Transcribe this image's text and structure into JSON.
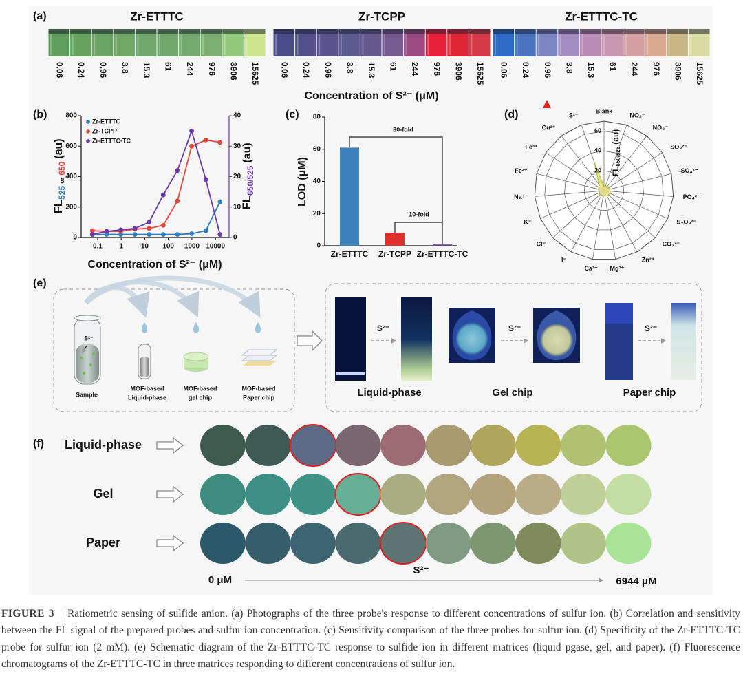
{
  "panel_a": {
    "label": "(a)",
    "x_label": "Concentration of S²⁻ (μM)",
    "groups": [
      {
        "title": "Zr-ETTTC",
        "concentrations": [
          0.06,
          0.24,
          0.96,
          3.8,
          15.3,
          61,
          244,
          976,
          3906,
          15625
        ],
        "colors": [
          "#5f9f5b",
          "#66a45e",
          "#6aa563",
          "#70a866",
          "#6fa86a",
          "#70a76b",
          "#74aa6d",
          "#7cae70",
          "#93c97b",
          "#cde58e"
        ]
      },
      {
        "title": "Zr-TCPP",
        "concentrations": [
          0.06,
          0.24,
          0.96,
          3.8,
          15.3,
          61,
          244,
          976,
          3906,
          15625
        ],
        "colors": [
          "#4a4d8a",
          "#534f8a",
          "#59548e",
          "#5d5991",
          "#655a90",
          "#775a90",
          "#9a4c82",
          "#e8203a",
          "#e02535",
          "#d63a48"
        ]
      },
      {
        "title": "Zr-ETTTC-TC",
        "concentrations": [
          0.06,
          0.24,
          0.96,
          3.8,
          15.3,
          61,
          244,
          976,
          3906,
          15625
        ],
        "colors": [
          "#2f6cc8",
          "#4a73c2",
          "#7c86c0",
          "#a18bbf",
          "#b98cb8",
          "#c996b0",
          "#d6a0a2",
          "#d8a890",
          "#c9b885",
          "#d9dca2"
        ]
      }
    ]
  },
  "panel_b": {
    "label": "(b)",
    "chart": {
      "type": "line",
      "x": [
        0.06,
        0.24,
        0.96,
        3.8,
        15.3,
        61,
        244,
        976,
        3906,
        15625
      ],
      "log_x": true,
      "xlim": [
        0.02,
        38000
      ],
      "xticks": [
        0.1,
        1,
        10,
        100,
        1000,
        10000
      ],
      "ylim": [
        0,
        800
      ],
      "yticks": [
        0,
        200,
        400,
        600,
        800
      ],
      "y2lim": [
        0,
        40
      ],
      "y2ticks": [
        0,
        10,
        20,
        30,
        40
      ],
      "x_label": "Concentration of S²⁻ (μM)",
      "y_label": {
        "main": "FL",
        "sub1": "525",
        "or": "or",
        "sub2": "650",
        "unit": "(au)"
      },
      "y2_label": {
        "main": "FL",
        "sub": "650/525",
        "unit": "(au)"
      },
      "legend": "upper left",
      "series": [
        {
          "name": "Zr-ETTTC",
          "color": "#2f7fc0",
          "values": [
            20,
            20,
            20,
            20,
            20,
            20,
            20,
            25,
            45,
            235
          ]
        },
        {
          "name": "Zr-TCPP",
          "color": "#e8453c",
          "values": [
            45,
            40,
            40,
            55,
            60,
            80,
            240,
            600,
            640,
            625
          ]
        },
        {
          "name": "Zr-ETTTC-TC",
          "color": "#6a3aa8",
          "axis": "y2",
          "values": [
            1,
            2,
            2.5,
            3,
            5,
            14,
            22,
            35,
            19,
            1
          ]
        }
      ]
    }
  },
  "panel_c": {
    "label": "(c)",
    "chart": {
      "type": "bar",
      "categories": [
        "Zr-ETTTC",
        "Zr-TCPP",
        "Zr-ETTTC-TC"
      ],
      "values": [
        61,
        8,
        0.76
      ],
      "colors": [
        "#3a80b9",
        "#e0302e",
        "#6a3aa0"
      ],
      "ylim": [
        0,
        80
      ],
      "yticks": [
        0,
        20,
        40,
        60,
        80
      ],
      "y_label": "LOD (μM)",
      "annotations": [
        "80-fold",
        "10-fold"
      ]
    }
  },
  "panel_d": {
    "label": "(d)",
    "chart": {
      "type": "radar",
      "categories": [
        "Blank",
        "NO₂⁻",
        "NO₃⁻",
        "SO₃²⁻",
        "SO₄²⁻",
        "PO₄²⁻",
        "S₂O₈²⁻",
        "CO₃²⁻",
        "Zn²⁺",
        "Mg²⁺",
        "Ca²⁺",
        "I⁻",
        "Cl⁻",
        "K⁺",
        "Na⁺",
        "Fe²⁺",
        "Fe³⁺",
        "Cu²⁺",
        "S²⁻"
      ],
      "values": [
        4,
        5,
        6,
        5,
        6,
        6,
        7,
        6,
        6,
        5,
        6,
        5,
        6,
        5,
        5,
        6,
        6,
        8,
        30
      ],
      "rlim": [
        0,
        70
      ],
      "rticks": [
        20,
        40,
        60
      ],
      "r_label": {
        "main": "FL",
        "sub": "650/525",
        "unit": "(au)"
      },
      "color": "#e6e48a",
      "edge_color": "#b7c040"
    }
  },
  "panel_e": {
    "label": "(e)",
    "sample": "Sample",
    "analyte": "S²⁻",
    "carriers": [
      [
        "MOF-based",
        "Liquid-phase"
      ],
      [
        "MOF-based",
        "gel chip"
      ],
      [
        "MOF-based",
        "Paper chip"
      ]
    ],
    "responses": [
      {
        "reagent": "S²⁻",
        "label": "Liquid-phase"
      },
      {
        "reagent": "S²⁻",
        "label": "Gel chip"
      },
      {
        "reagent": "S²⁻",
        "label": "Paper chip"
      }
    ]
  },
  "panel_f": {
    "label": "(f)",
    "rows": [
      {
        "label": "Liquid-phase",
        "label_color": "#3d9c8c",
        "highlight": 2,
        "colors": [
          "#3d5a4f",
          "#3f5955",
          "#5b6b86",
          "#7b6670",
          "#9c6a73",
          "#a89a6e",
          "#b0a55c",
          "#b8b455",
          "#b2c072",
          "#aac66f"
        ]
      },
      {
        "label": "Gel",
        "label_color": "#2aae78",
        "highlight": 3,
        "colors": [
          "#3e8c80",
          "#3c8f87",
          "#3e9286",
          "#66ae96",
          "#a9ad82",
          "#b0a57c",
          "#b4a27a",
          "#bbac88",
          "#c0cf98",
          "#c3dea3"
        ]
      },
      {
        "label": "Paper",
        "label_color": "#7a48a8",
        "highlight": 4,
        "colors": [
          "#2d5a6a",
          "#355e6a",
          "#3d6370",
          "#4a6a70",
          "#5c7573",
          "#7e9b82",
          "#7d9770",
          "#7e8a5c",
          "#b1c488",
          "#a8e396"
        ]
      }
    ],
    "axis": {
      "start": "0 μM",
      "middle": "S²⁻",
      "end": "6944 μM"
    }
  },
  "caption": {
    "label": "FIGURE 3",
    "divider": "|",
    "text": "Ratiometric sensing of sulfide anion. (a) Photographs of the three probe's response to different concentrations of sulfur ion. (b) Correlation and sensitivity between the FL signal of the prepared probes and sulfur ion concentration. (c) Sensitivity comparison of the three probes for sulfur ion. (d) Specificity of the Zr-ETTTC-TC probe for sulfur ion (2 mM). (e) Schematic diagram of the Zr-ETTTC-TC response to sulfide ion in different matrices (liquid pgase, gel, and paper). (f) Fluorescence chromatograms of the Zr-ETTTC-TC in three matrices responding to different concentrations of sulfur ion."
  }
}
